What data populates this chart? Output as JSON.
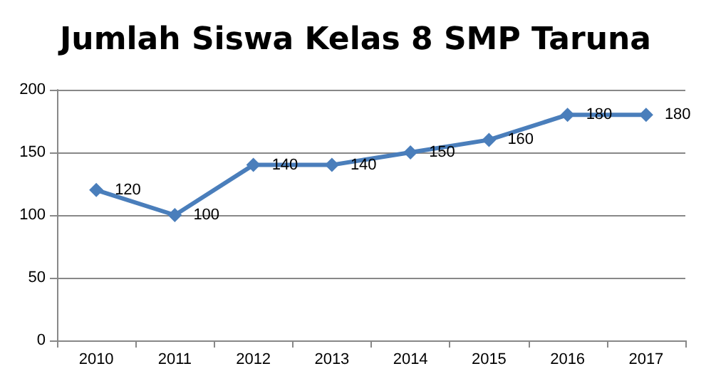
{
  "chart_data": {
    "type": "line",
    "title": "Jumlah Siswa Kelas 8 SMP Taruna",
    "categories": [
      "2010",
      "2011",
      "2012",
      "2013",
      "2014",
      "2015",
      "2016",
      "2017"
    ],
    "series": [
      {
        "color": "#4a7ebb",
        "values": [
          120,
          100,
          140,
          140,
          150,
          160,
          180,
          180
        ]
      }
    ],
    "ylim": [
      0,
      200
    ],
    "yticks": [
      0,
      50,
      100,
      150,
      200
    ],
    "grid": "y",
    "marker": "diamond",
    "line_style": "solid",
    "data_labels": true
  }
}
